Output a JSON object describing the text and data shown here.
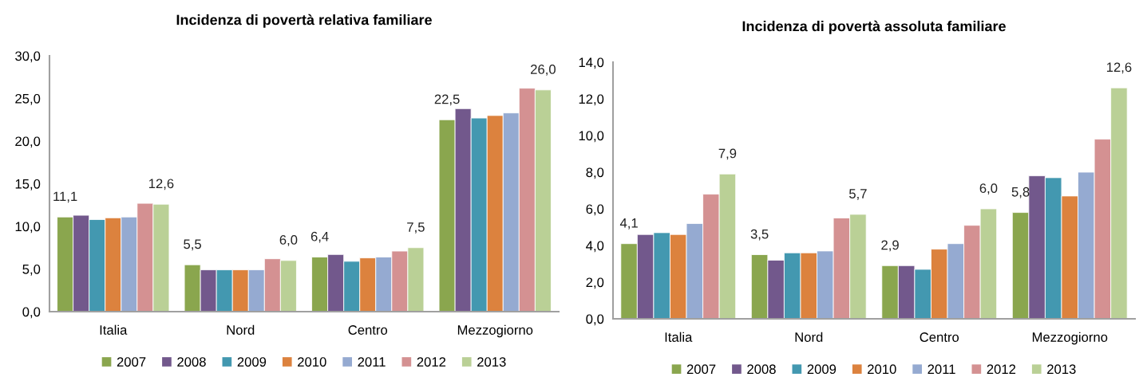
{
  "chart_data": [
    {
      "type": "bar",
      "title": "Incidenza di povertà relativa familiare",
      "categories": [
        "Italia",
        "Nord",
        "Centro",
        "Mezzogiorno"
      ],
      "ylim": [
        0,
        30
      ],
      "yticks": [
        {
          "value": 0,
          "label": "0,0"
        },
        {
          "value": 5,
          "label": "5,0"
        },
        {
          "value": 10,
          "label": "10,0"
        },
        {
          "value": 15,
          "label": "15,0"
        },
        {
          "value": 20,
          "label": "20,0"
        },
        {
          "value": 25,
          "label": "25,0"
        },
        {
          "value": 30,
          "label": "30,0"
        }
      ],
      "grid": false,
      "legend": "bottom",
      "series": [
        {
          "name": "2007",
          "color": "#8aa64e",
          "values": [
            11.1,
            5.5,
            6.4,
            22.5
          ],
          "value_labels": [
            "11,1",
            "5,5",
            "6,4",
            "22,5"
          ]
        },
        {
          "name": "2008",
          "color": "#72588c",
          "values": [
            11.3,
            4.9,
            6.7,
            23.8
          ]
        },
        {
          "name": "2009",
          "color": "#4398b0",
          "values": [
            10.8,
            4.9,
            5.9,
            22.7
          ]
        },
        {
          "name": "2010",
          "color": "#dc823e",
          "values": [
            11.0,
            4.9,
            6.3,
            23.0
          ]
        },
        {
          "name": "2011",
          "color": "#95aad1",
          "values": [
            11.1,
            4.9,
            6.4,
            23.3
          ]
        },
        {
          "name": "2012",
          "color": "#d49192",
          "values": [
            12.7,
            6.2,
            7.1,
            26.2
          ]
        },
        {
          "name": "2013",
          "color": "#bad096",
          "values": [
            12.6,
            6.0,
            7.5,
            26.0
          ],
          "value_labels": [
            "12,6",
            "6,0",
            "7,5",
            "26,0"
          ]
        }
      ]
    },
    {
      "type": "bar",
      "title": "Incidenza di povertà assoluta familiare",
      "categories": [
        "Italia",
        "Nord",
        "Centro",
        "Mezzogiorno"
      ],
      "ylim": [
        0,
        14
      ],
      "yticks": [
        {
          "value": 0,
          "label": "0,0"
        },
        {
          "value": 2,
          "label": "2,0"
        },
        {
          "value": 4,
          "label": "4,0"
        },
        {
          "value": 6,
          "label": "6,0"
        },
        {
          "value": 8,
          "label": "8,0"
        },
        {
          "value": 10,
          "label": "10,0"
        },
        {
          "value": 12,
          "label": "12,0"
        },
        {
          "value": 14,
          "label": "14,0"
        }
      ],
      "grid": false,
      "legend": "bottom",
      "series": [
        {
          "name": "2007",
          "color": "#8aa64e",
          "values": [
            4.1,
            3.5,
            2.9,
            5.8
          ],
          "value_labels": [
            "4,1",
            "3,5",
            "2,9",
            "5,8"
          ]
        },
        {
          "name": "2008",
          "color": "#72588c",
          "values": [
            4.6,
            3.2,
            2.9,
            7.8
          ]
        },
        {
          "name": "2009",
          "color": "#4398b0",
          "values": [
            4.7,
            3.6,
            2.7,
            7.7
          ]
        },
        {
          "name": "2010",
          "color": "#dc823e",
          "values": [
            4.6,
            3.6,
            3.8,
            6.7
          ]
        },
        {
          "name": "2011",
          "color": "#95aad1",
          "values": [
            5.2,
            3.7,
            4.1,
            8.0
          ]
        },
        {
          "name": "2012",
          "color": "#d49192",
          "values": [
            6.8,
            5.5,
            5.1,
            9.8
          ]
        },
        {
          "name": "2013",
          "color": "#bad096",
          "values": [
            7.9,
            5.7,
            6.0,
            12.6
          ],
          "value_labels": [
            "7,9",
            "5,7",
            "6,0",
            "12,6"
          ]
        }
      ]
    }
  ]
}
